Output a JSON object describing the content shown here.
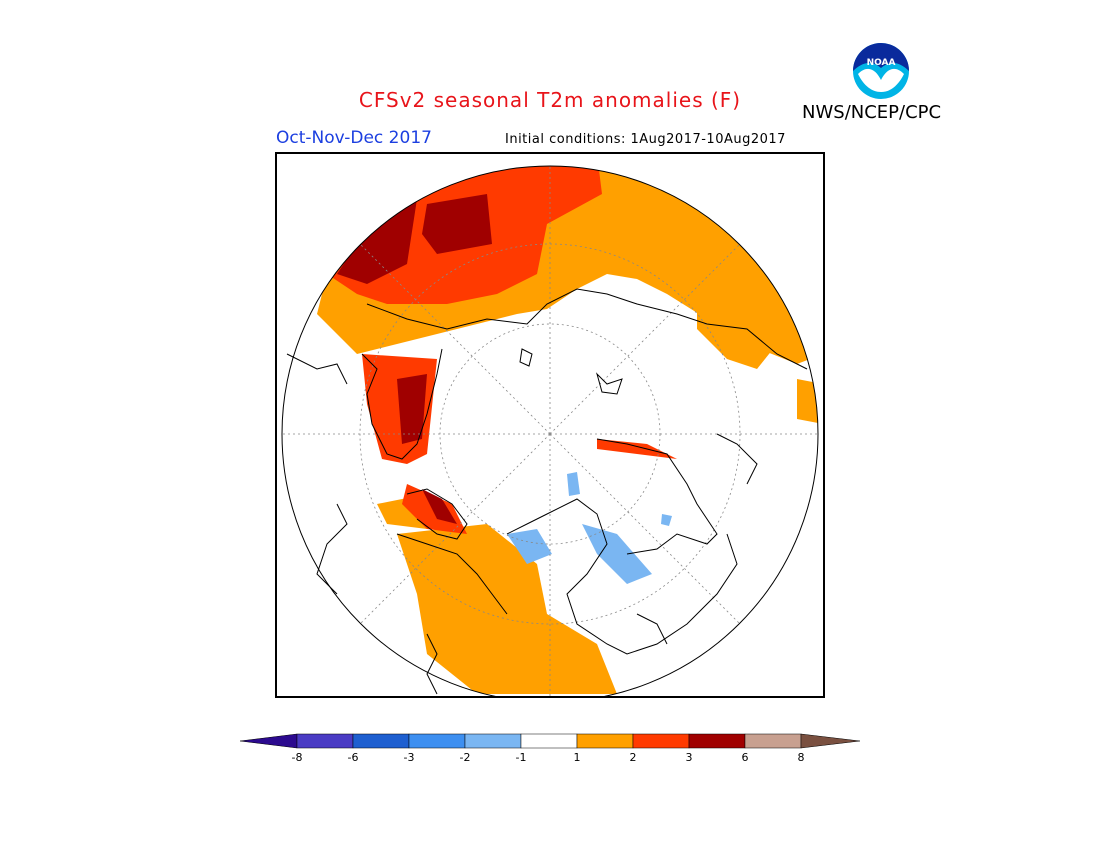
{
  "header": {
    "title": "CFSv2 seasonal T2m anomalies (F)",
    "agency": "NWS/NCEP/CPC",
    "season": "Oct-Nov-Dec 2017",
    "initial_conditions": "Initial conditions: 1Aug2017-10Aug2017",
    "logo_text": "NOAA"
  },
  "map": {
    "projection": "polar stereographic (north pole)",
    "icon": "northern-hemisphere-anomaly-map"
  },
  "colorbar": {
    "colors": [
      "#2c0a8f",
      "#4a3bc4",
      "#1e5fd0",
      "#3d8ff0",
      "#7ab6f2",
      "#ffffff",
      "#ffa000",
      "#ff3a00",
      "#a00000",
      "#c8a090",
      "#7a5040"
    ],
    "tick_labels": [
      "-8",
      "-6",
      "-3",
      "-2",
      "-1",
      "1",
      "2",
      "3",
      "6",
      "8"
    ]
  }
}
